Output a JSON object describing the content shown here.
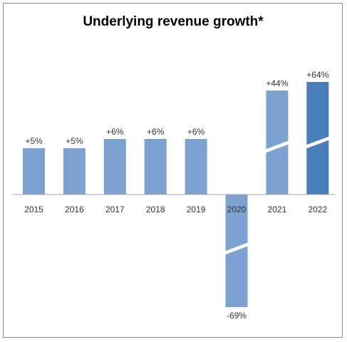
{
  "chart_data": {
    "type": "bar",
    "title": "Underlying revenue growth*",
    "categories": [
      "2015",
      "2016",
      "2017",
      "2018",
      "2019",
      "2020",
      "2021",
      "2022"
    ],
    "values": [
      5,
      5,
      6,
      6,
      6,
      -69,
      44,
      64
    ],
    "value_labels": [
      "+5%",
      "+5%",
      "+6%",
      "+6%",
      "+6%",
      "-69%",
      "+44%",
      "+64%"
    ],
    "broken_axis_bars": [
      "2020",
      "2021",
      "2022"
    ],
    "unit": "%",
    "grid": false,
    "legend": "none",
    "colors": {
      "bar": "#7ba2d1",
      "highlight_bar": "#4a7ebb",
      "highlight_category": "2022",
      "axis": "#a6a6a6",
      "break_mark": "#ffffff"
    }
  }
}
